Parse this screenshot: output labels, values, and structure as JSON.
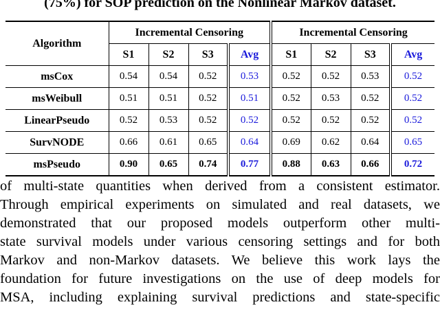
{
  "caption": "(75%) for SOP prediction on the Nonlinear Markov dataset.",
  "table": {
    "algorithm_header": "Algorithm",
    "group_headers": [
      "Incremental Censoring",
      "Incremental Censoring"
    ],
    "sub_headers": [
      "S1",
      "S2",
      "S3",
      "Avg",
      "S1",
      "S2",
      "S3",
      "Avg"
    ],
    "rows": [
      {
        "name": "msCox",
        "values": [
          "0.54",
          "0.54",
          "0.52",
          "0.53",
          "0.52",
          "0.52",
          "0.53",
          "0.52"
        ]
      },
      {
        "name": "msWeibull",
        "values": [
          "0.51",
          "0.51",
          "0.52",
          "0.51",
          "0.52",
          "0.53",
          "0.52",
          "0.52"
        ]
      },
      {
        "name": "LinearPseudo",
        "values": [
          "0.52",
          "0.53",
          "0.52",
          "0.52",
          "0.52",
          "0.52",
          "0.52",
          "0.52"
        ]
      },
      {
        "name": "SurvNODE",
        "values": [
          "0.66",
          "0.61",
          "0.65",
          "0.64",
          "0.69",
          "0.62",
          "0.64",
          "0.65"
        ]
      },
      {
        "name": "msPseudo",
        "values": [
          "0.90",
          "0.65",
          "0.74",
          "0.77",
          "0.88",
          "0.63",
          "0.66",
          "0.72"
        ]
      }
    ]
  },
  "body_lines": [
    "of multi-state quantities when derived from a consistent estimator.",
    "Through empirical experiments on simulated and real datasets, we",
    "demonstrated that our proposed models outperform other multi-",
    "state survival models under various censoring settings and for both",
    "Markov and non-Markov datasets. We believe this work lays the",
    "foundation for future investigations on the use of deep models for",
    "MSA, including explaining survival predictions and state-specific"
  ],
  "colors": {
    "avg_column": "#1a1adb"
  }
}
